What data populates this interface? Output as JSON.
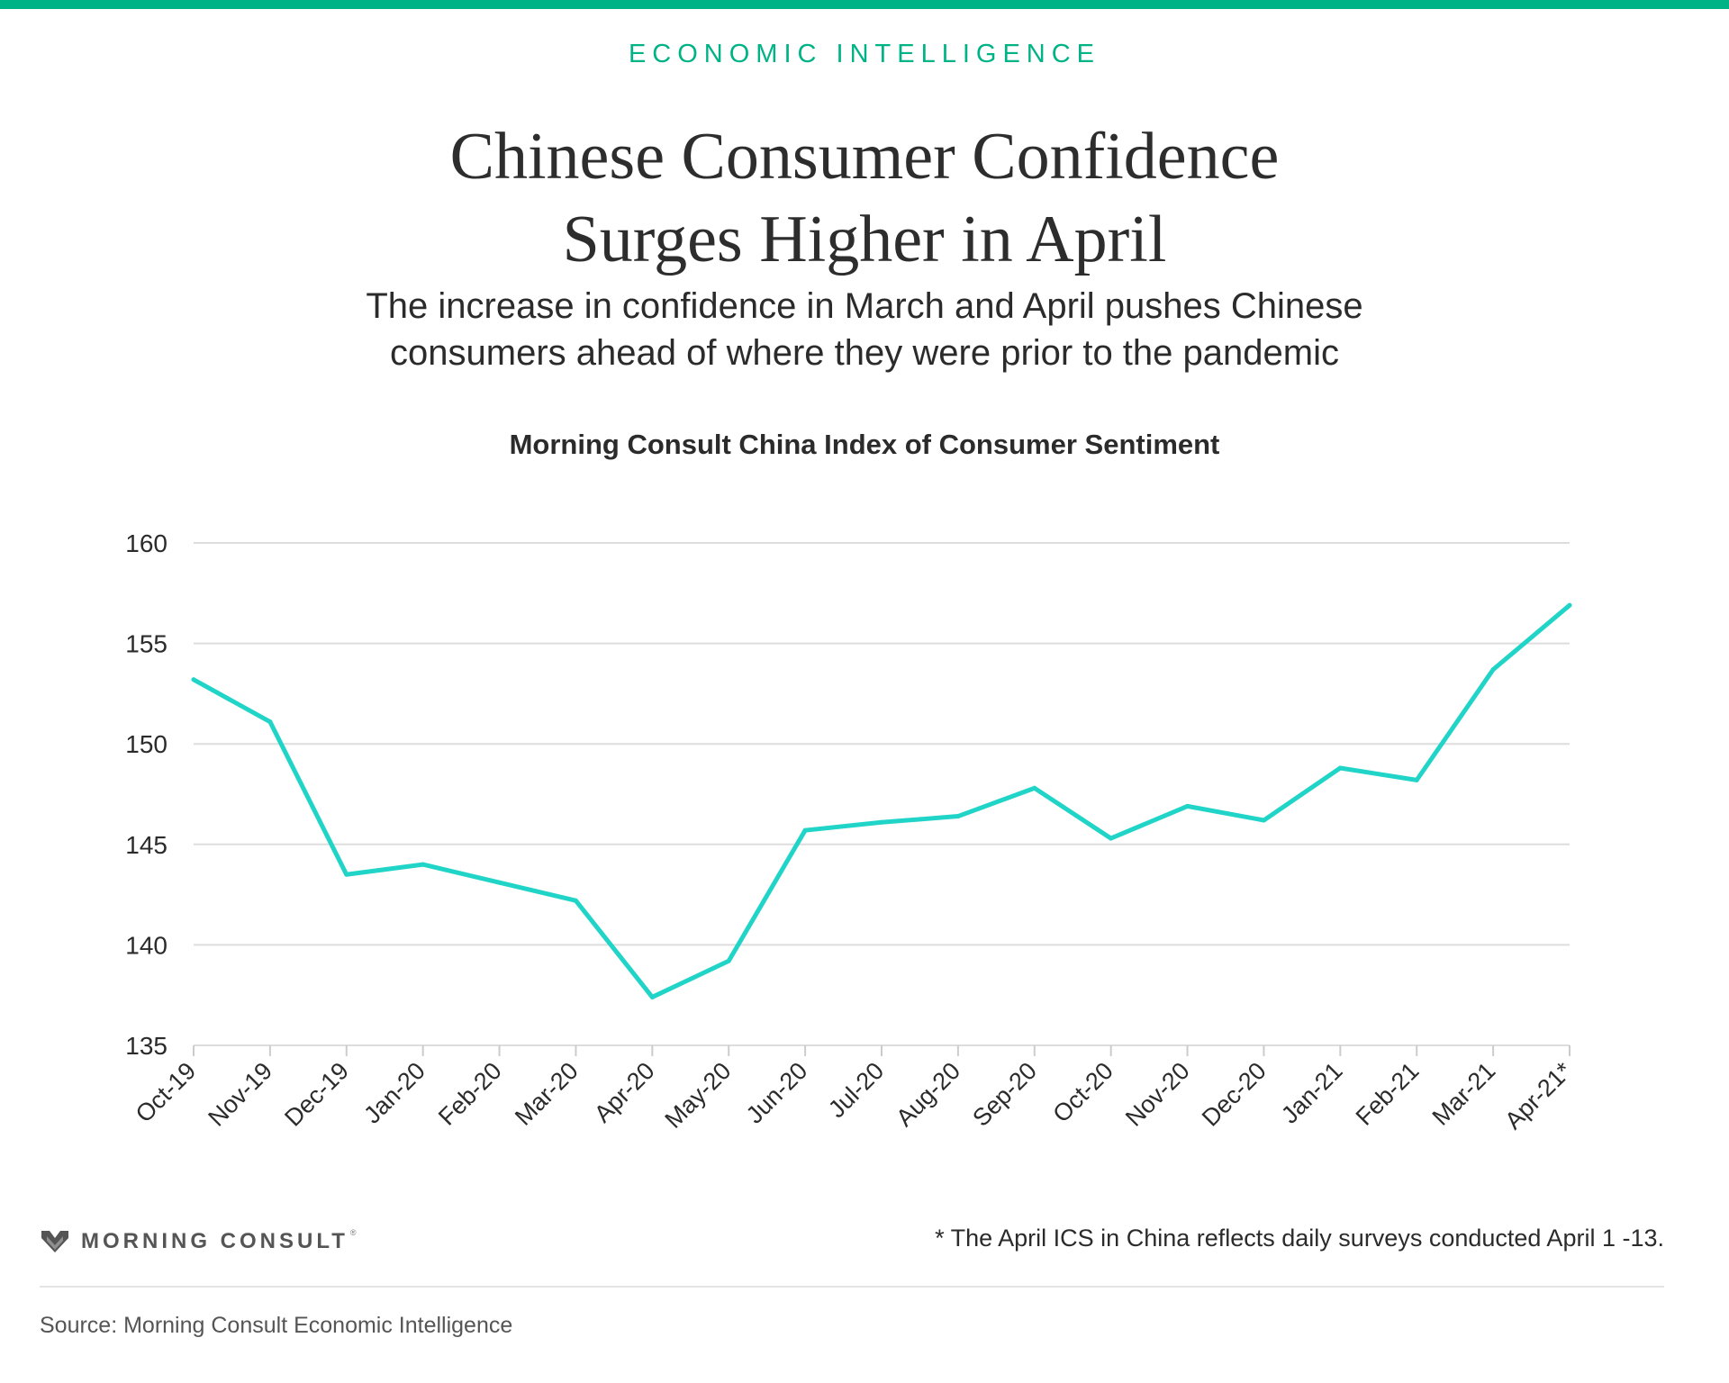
{
  "header": {
    "kicker": "ECONOMIC INTELLIGENCE",
    "title_line1": "Chinese Consumer Confidence",
    "title_line2": "Surges Higher in April",
    "subtitle_line1": "The increase in confidence in March and April pushes Chinese",
    "subtitle_line2": "consumers ahead of where they were prior to the pandemic"
  },
  "colors": {
    "accent": "#00b386",
    "line": "#21d4c8",
    "grid": "#dddddd",
    "text": "#2b2b2b"
  },
  "chart_data": {
    "type": "line",
    "title": "Morning Consult China Index of Consumer Sentiment",
    "xlabel": "",
    "ylabel": "",
    "ylim": [
      135,
      160
    ],
    "yticks": [
      160,
      155,
      150,
      145,
      140,
      135
    ],
    "grid": true,
    "categories": [
      "Oct-19",
      "Nov-19",
      "Dec-19",
      "Jan-20",
      "Feb-20",
      "Mar-20",
      "Apr-20",
      "May-20",
      "Jun-20",
      "Jul-20",
      "Aug-20",
      "Sep-20",
      "Oct-20",
      "Nov-20",
      "Dec-20",
      "Jan-21",
      "Feb-21",
      "Mar-21",
      "Apr-21*"
    ],
    "series": [
      {
        "values": [
          153.2,
          151.1,
          143.5,
          144.0,
          143.1,
          142.2,
          137.4,
          139.2,
          145.7,
          146.1,
          146.4,
          147.8,
          145.3,
          146.9,
          146.2,
          148.8,
          148.2,
          153.7,
          156.9
        ]
      }
    ]
  },
  "footer": {
    "logo_text": "MORNING CONSULT",
    "logo_tm": "®",
    "footnote": "* The April ICS in China reflects daily surveys conducted April 1 -13.",
    "source": "Source: Morning Consult Economic Intelligence"
  }
}
